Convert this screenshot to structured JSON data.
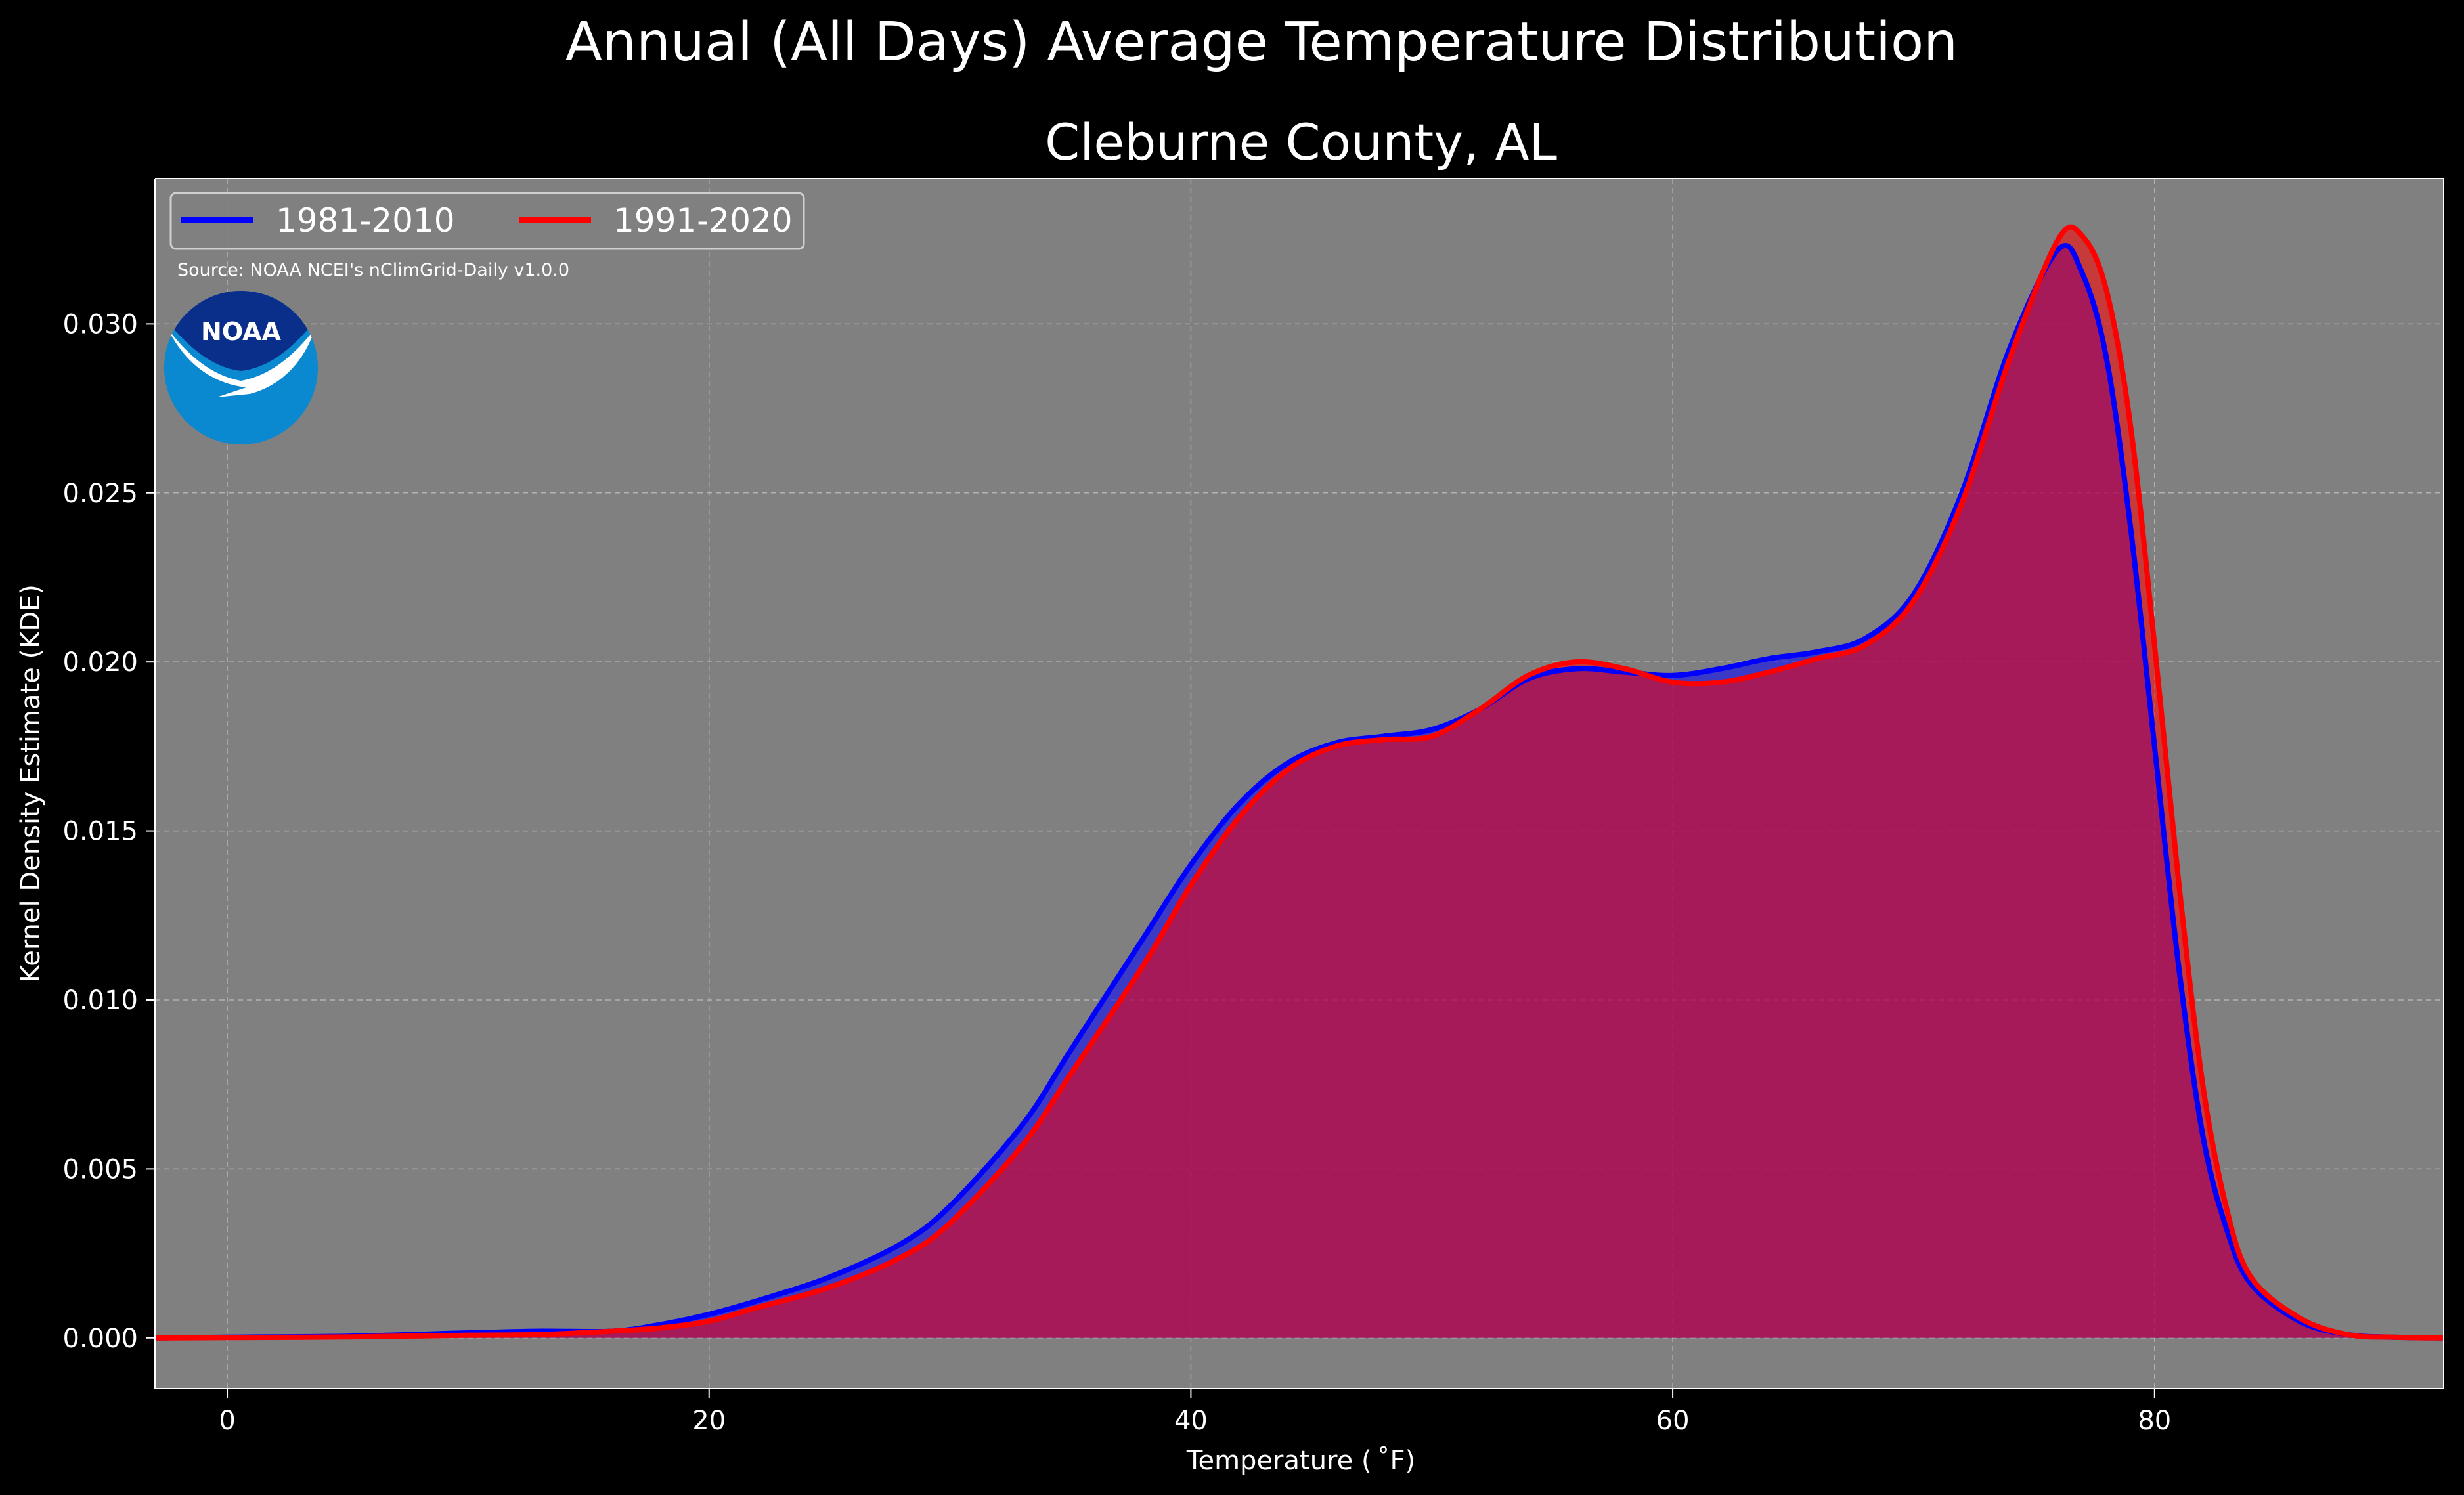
{
  "chart_data": {
    "type": "area",
    "title": "Annual (All Days) Average Temperature Distribution",
    "subtitle": "Cleburne County, AL",
    "xlabel": "Temperature ($^\\circ$F)",
    "xlabel_display": "Temperature ( ˚F)",
    "ylabel": "Kernel Density Estimate (KDE)",
    "xlim": [
      -3,
      92
    ],
    "ylim": [
      -0.0015,
      0.0343
    ],
    "xticks": [
      0,
      20,
      40,
      60,
      80
    ],
    "xtick_labels": [
      "0",
      "20",
      "40",
      "60",
      "80"
    ],
    "yticks": [
      0.0,
      0.005,
      0.01,
      0.015,
      0.02,
      0.025,
      0.03
    ],
    "ytick_labels": [
      "0.000",
      "0.005",
      "0.010",
      "0.015",
      "0.020",
      "0.025",
      "0.030"
    ],
    "grid": true,
    "legend_position": "top-left",
    "source": "Source: NOAA NCEI's nClimGrid-Daily v1.0.0",
    "logo_text": "NOAA",
    "colors": {
      "background": "#000000",
      "plot_background": "#808080",
      "series_1981_2010": "#0000ff",
      "series_1991_2020": "#ff0000",
      "overlap_fill": "#9e1f5c",
      "noaa_dark": "#0a2f8a",
      "noaa_light": "#0a88d0"
    },
    "series": [
      {
        "name": "1981-2010",
        "color": "#0000ff",
        "x": [
          -3,
          0,
          5,
          10,
          13,
          16,
          18,
          20,
          22,
          25,
          28,
          30,
          33,
          35,
          38,
          40,
          42,
          44,
          46,
          48,
          50,
          52,
          54,
          56,
          58,
          60,
          62,
          64,
          66,
          68,
          70,
          72,
          74,
          76,
          77,
          78,
          79,
          80,
          81,
          82,
          83,
          84,
          86,
          88,
          90,
          92
        ],
        "y": [
          0.0,
          2e-05,
          5e-05,
          0.00015,
          0.0002,
          0.0002,
          0.0004,
          0.0007,
          0.0011,
          0.0018,
          0.0028,
          0.0039,
          0.0063,
          0.0085,
          0.0118,
          0.014,
          0.0158,
          0.017,
          0.0176,
          0.0178,
          0.018,
          0.0186,
          0.0195,
          0.0198,
          0.0197,
          0.0196,
          0.0198,
          0.0201,
          0.0203,
          0.0207,
          0.022,
          0.025,
          0.0293,
          0.0322,
          0.0315,
          0.029,
          0.024,
          0.0175,
          0.011,
          0.006,
          0.0032,
          0.0016,
          0.0005,
          0.0001,
          2e-05,
          0.0
        ]
      },
      {
        "name": "1991-2020",
        "color": "#ff0000",
        "x": [
          -3,
          0,
          5,
          10,
          13,
          16,
          18,
          20,
          22,
          25,
          28,
          30,
          33,
          35,
          38,
          40,
          42,
          44,
          46,
          48,
          50,
          52,
          54,
          56,
          58,
          60,
          62,
          64,
          66,
          68,
          70,
          72,
          74,
          76,
          77,
          78,
          79,
          80,
          81,
          82,
          83,
          84,
          86,
          88,
          90,
          92
        ],
        "y": [
          0.0,
          1e-05,
          3e-05,
          8e-05,
          0.0001,
          0.0002,
          0.0003,
          0.0005,
          0.0009,
          0.0015,
          0.0024,
          0.0034,
          0.0057,
          0.0078,
          0.011,
          0.0134,
          0.0154,
          0.0168,
          0.0175,
          0.0177,
          0.0178,
          0.0186,
          0.0196,
          0.02,
          0.0198,
          0.0194,
          0.0194,
          0.0197,
          0.0201,
          0.0205,
          0.0218,
          0.0247,
          0.029,
          0.0325,
          0.0326,
          0.031,
          0.027,
          0.0205,
          0.0135,
          0.0075,
          0.0038,
          0.0018,
          0.0006,
          0.0001,
          2e-05,
          0.0
        ]
      }
    ]
  }
}
